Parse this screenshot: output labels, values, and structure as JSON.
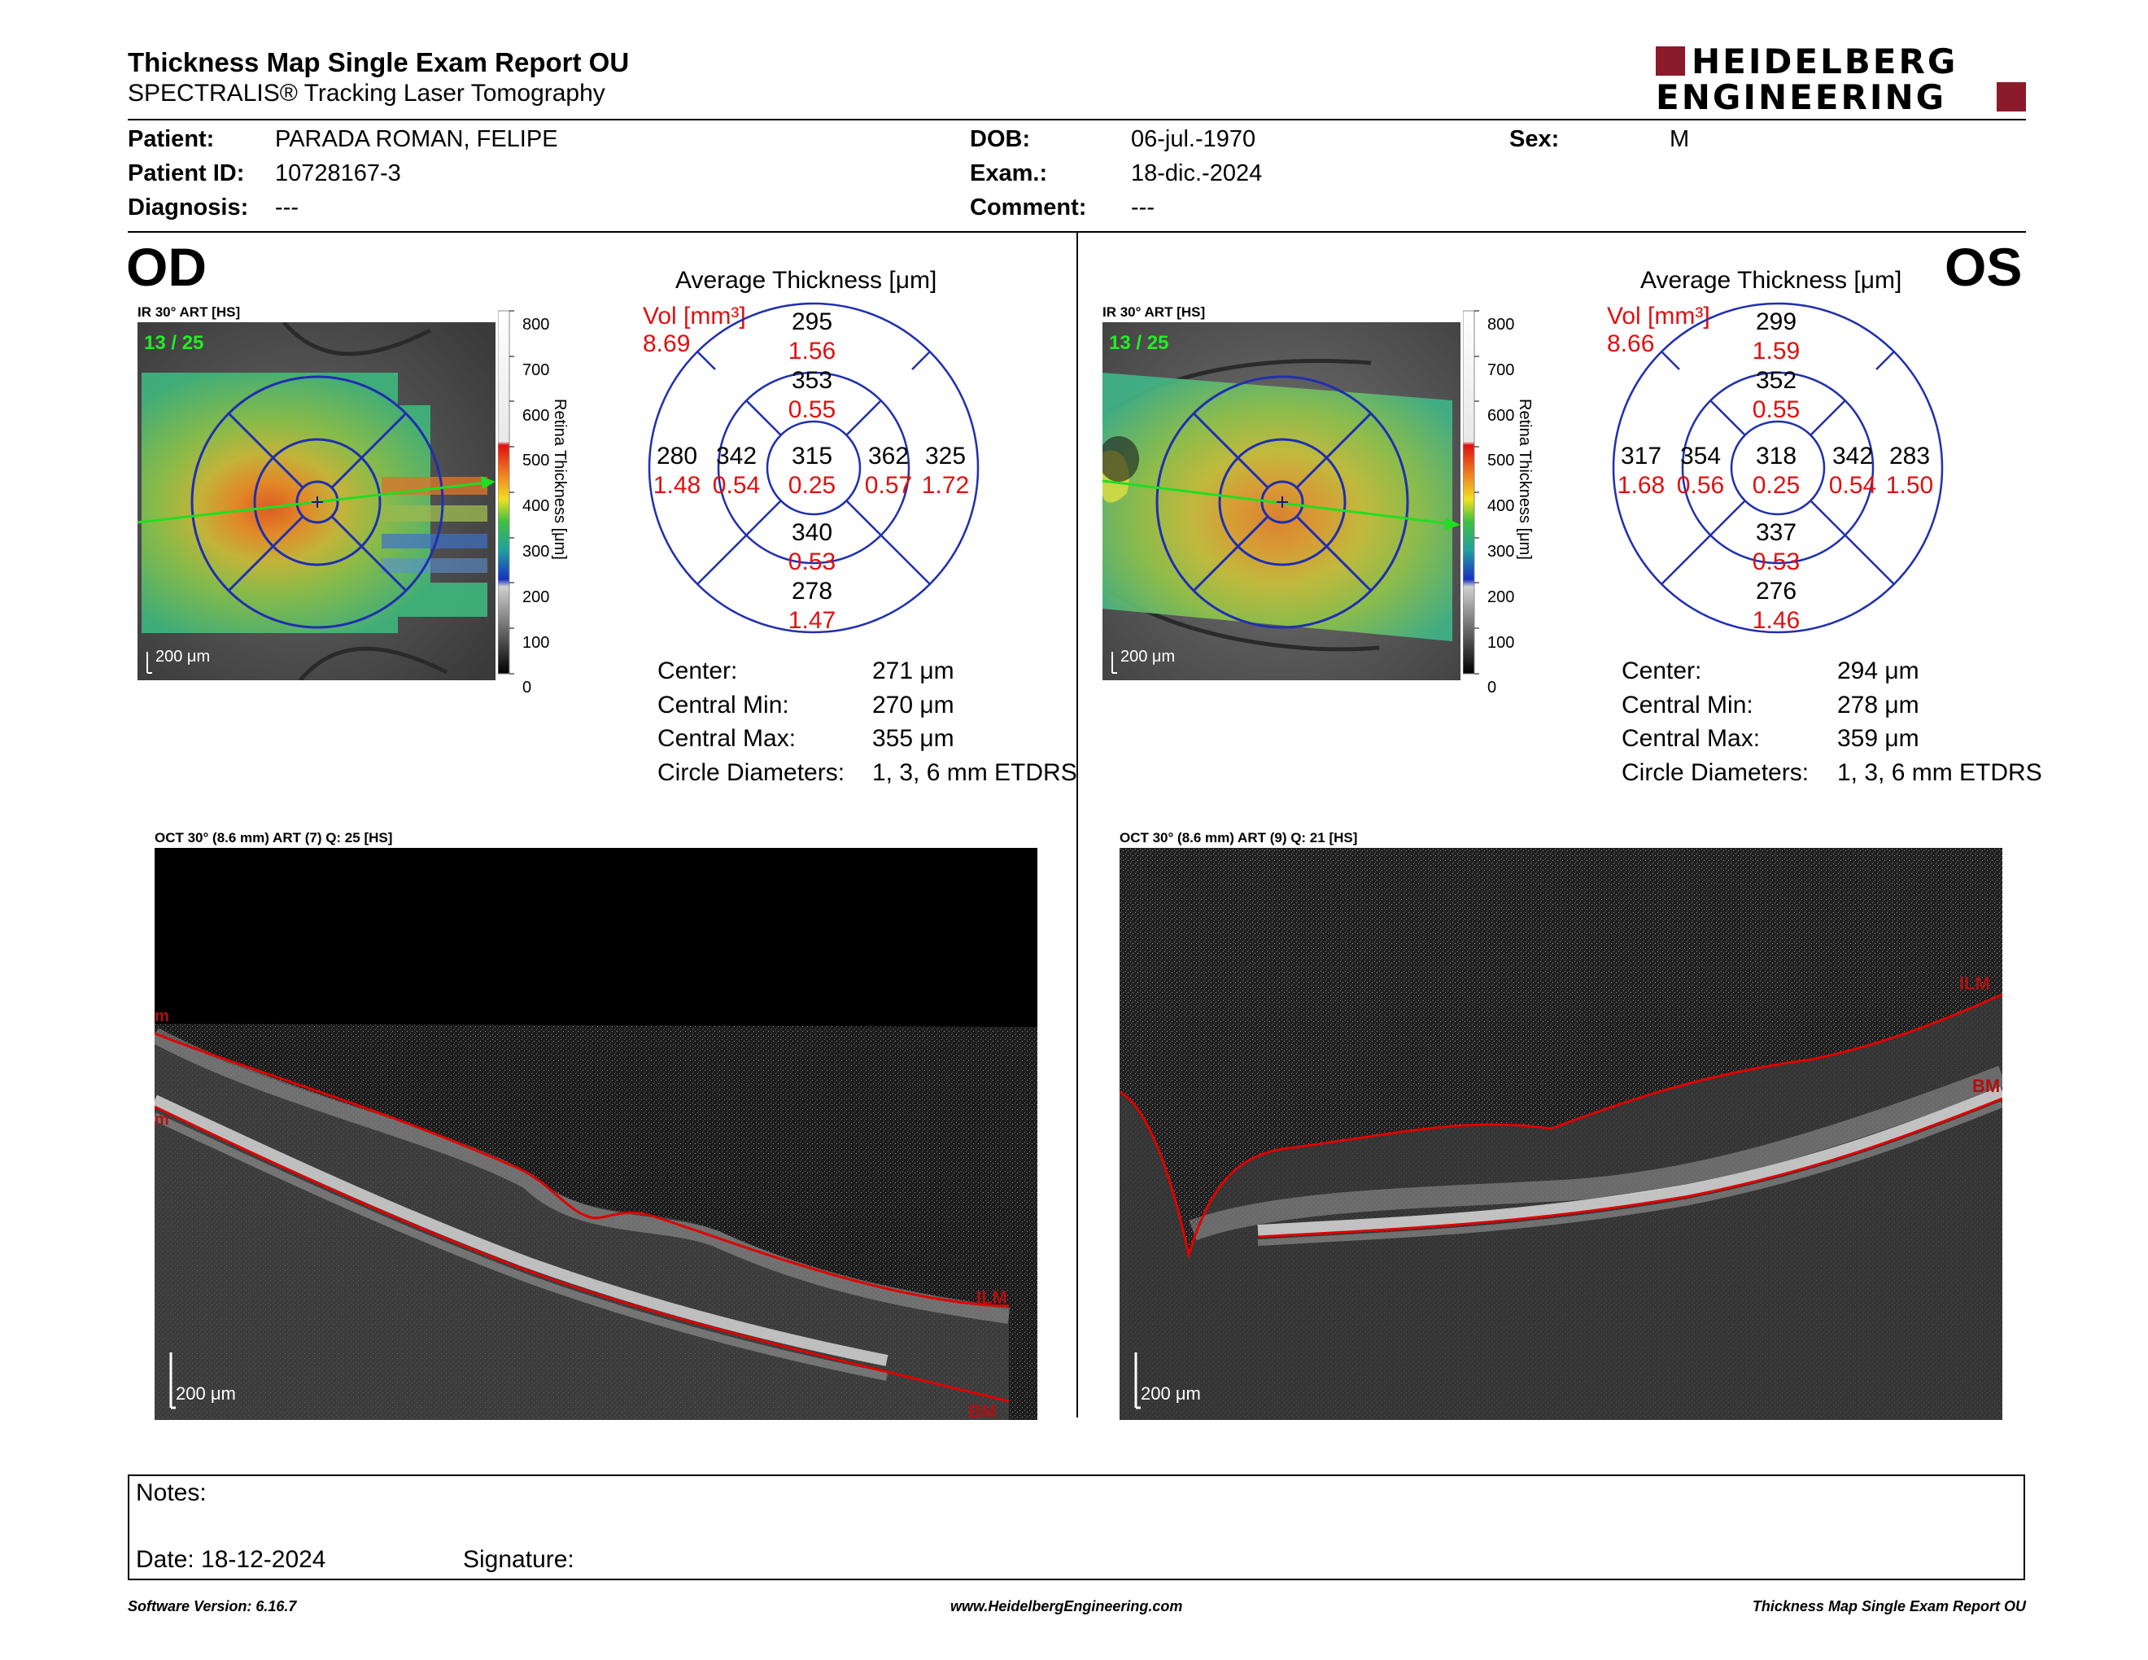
{
  "header": {
    "title": "Thickness Map Single Exam Report OU",
    "subtitle": "SPECTRALIS® Tracking Laser Tomography",
    "logo_line1": "HEIDELBERG",
    "logo_line2": "ENGINEERING",
    "brand_color": "#8b1a2b"
  },
  "patient": {
    "patient_label": "Patient:",
    "patient_value": "PARADA ROMAN, FELIPE",
    "id_label": "Patient ID:",
    "id_value": "10728167-3",
    "diagnosis_label": "Diagnosis:",
    "diagnosis_value": "---",
    "dob_label": "DOB:",
    "dob_value": "06-jul.-1970",
    "exam_label": "Exam.:",
    "exam_value": "18-dic.-2024",
    "comment_label": "Comment:",
    "comment_value": "---",
    "sex_label": "Sex:",
    "sex_value": "M"
  },
  "scale": {
    "ticks": [
      "800",
      "700",
      "600",
      "500",
      "400",
      "300",
      "200",
      "100",
      "0"
    ],
    "axis_label": "Retina Thickness [μm]"
  },
  "od": {
    "eye_label": "OD",
    "ir_label": "IR 30° ART [HS]",
    "frame_count": "13 / 25",
    "scale_bar": "200 μm",
    "avg_title": "Average Thickness [μm]",
    "vol_label": "Vol [mm³]",
    "vol_value": "8.69",
    "sectors": {
      "center": {
        "t": "315",
        "v": "0.25"
      },
      "inner_sup": {
        "t": "353",
        "v": "0.55"
      },
      "inner_inf": {
        "t": "340",
        "v": "0.53"
      },
      "inner_left": {
        "t": "342",
        "v": "0.54"
      },
      "inner_right": {
        "t": "362",
        "v": "0.57"
      },
      "outer_sup": {
        "t": "295",
        "v": "1.56"
      },
      "outer_inf": {
        "t": "278",
        "v": "1.47"
      },
      "outer_left": {
        "t": "280",
        "v": "1.48"
      },
      "outer_right": {
        "t": "325",
        "v": "1.72"
      }
    },
    "stats": {
      "center_label": "Center:",
      "center_value": "271 μm",
      "min_label": "Central Min:",
      "min_value": "270 μm",
      "max_label": "Central Max:",
      "max_value": "355 μm",
      "diam_label": "Circle Diameters:",
      "diam_value": "1, 3, 6 mm ETDRS"
    },
    "oct_label": "OCT 30° (8.6 mm) ART (7) Q: 25 [HS]",
    "oct_scale": "200 μm",
    "ilm": "ILM",
    "bm": "BM",
    "edge_ilm": "m",
    "edge_bm": "m"
  },
  "os": {
    "eye_label": "OS",
    "ir_label": "IR 30° ART [HS]",
    "frame_count": "13 / 25",
    "scale_bar": "200 μm",
    "avg_title": "Average Thickness [μm]",
    "vol_label": "Vol [mm³]",
    "vol_value": "8.66",
    "sectors": {
      "center": {
        "t": "318",
        "v": "0.25"
      },
      "inner_sup": {
        "t": "352",
        "v": "0.55"
      },
      "inner_inf": {
        "t": "337",
        "v": "0.53"
      },
      "inner_left": {
        "t": "354",
        "v": "0.56"
      },
      "inner_right": {
        "t": "342",
        "v": "0.54"
      },
      "outer_sup": {
        "t": "299",
        "v": "1.59"
      },
      "outer_inf": {
        "t": "276",
        "v": "1.46"
      },
      "outer_left": {
        "t": "317",
        "v": "1.68"
      },
      "outer_right": {
        "t": "283",
        "v": "1.50"
      }
    },
    "stats": {
      "center_label": "Center:",
      "center_value": "294 μm",
      "min_label": "Central Min:",
      "min_value": "278 μm",
      "max_label": "Central Max:",
      "max_value": "359 μm",
      "diam_label": "Circle Diameters:",
      "diam_value": "1, 3, 6 mm ETDRS"
    },
    "oct_label": "OCT 30° (8.6 mm) ART (9) Q: 21 [HS]",
    "oct_scale": "200 μm",
    "ilm": "ILM",
    "bm": "BM"
  },
  "notes": {
    "notes_label": "Notes:",
    "date_label": "Date: 18-12-2024",
    "signature_label": "Signature:"
  },
  "footer": {
    "software": "Software Version: 6.16.7",
    "website": "www.HeidelbergEngineering.com",
    "report": "Thickness Map Single Exam Report OU"
  },
  "colors": {
    "grid_blue": "#1f2fb0",
    "red_text": "#e01010",
    "ilm_line": "#e00000"
  }
}
